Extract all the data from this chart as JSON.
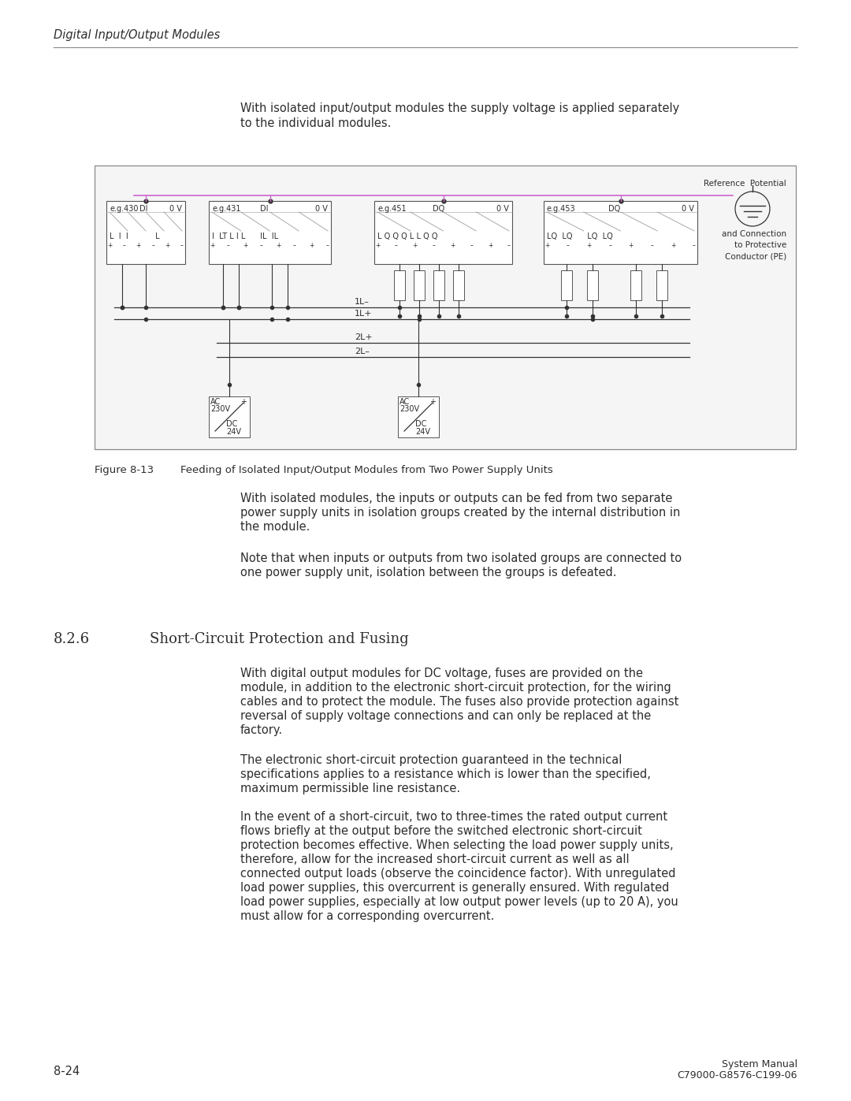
{
  "page_title": "Digital Input/Output Modules",
  "intro_line1": "With isolated input/output modules the supply voltage is applied separately",
  "intro_line2": "to the individual modules.",
  "figure_caption_label": "Figure 8-13",
  "figure_caption_text": "    Feeding of Isolated Input/Output Modules from Two Power Supply Units",
  "body_para1_line1": "With isolated modules, the inputs or outputs can be fed from two separate",
  "body_para1_line2": "power supply units in isolation groups created by the internal distribution in",
  "body_para1_line3": "the module.",
  "body_para2_line1": "Note that when inputs or outputs from two isolated groups are connected to",
  "body_para2_line2": "one power supply unit, isolation between the groups is defeated.",
  "section_number": "8.2.6",
  "section_title": "Short-Circuit Protection and Fusing",
  "para1_lines": [
    "With digital output modules for DC voltage, fuses are provided on the",
    "module, in addition to the electronic short-circuit protection, for the wiring",
    "cables and to protect the module. The fuses also provide protection against",
    "reversal of supply voltage connections and can only be replaced at the",
    "factory."
  ],
  "para2_lines": [
    "The electronic short-circuit protection guaranteed in the technical",
    "specifications applies to a resistance which is lower than the specified,",
    "maximum permissible line resistance."
  ],
  "para3_lines": [
    "In the event of a short-circuit, two to three-times the rated output current",
    "flows briefly at the output before the switched electronic short-circuit",
    "protection becomes effective. When selecting the load power supply units,",
    "therefore, allow for the increased short-circuit current as well as all",
    "connected output loads (observe the coincidence factor). With unregulated",
    "load power supplies, this overcurrent is generally ensured. With regulated",
    "load power supplies, especially at low output power levels (up to 20 A), you",
    "must allow for a corresponding overcurrent."
  ],
  "footer_left": "8-24",
  "footer_right1": "System Manual",
  "footer_right2": "C79000-G8576-C199-06",
  "ref_potential": "Reference  Potential",
  "and_connection": "and Connection\nto Protective\nConductor (PE)",
  "mod1_label": "e.g.430",
  "mod1_type": "DI",
  "mod1_volt": "0 V",
  "mod1_pins": "L  I  I           L",
  "mod2_label": "e.g.431",
  "mod2_type": "DI",
  "mod2_volt": "0 V",
  "mod2_pins": "I  LT L I L      IL  IL",
  "mod3_label": "e.g.451",
  "mod3_type": "DQ",
  "mod3_volt": "0 V",
  "mod3_pins": "L Q Q Q L L Q Q",
  "mod4_label": "e.g.453",
  "mod4_type": "DQ",
  "mod4_volt": "0 V",
  "mod4_pins": "LQ  LQ      LQ  LQ",
  "bus1_label": "1L–",
  "bus2_label": "1L+",
  "bus3_label": "2L+",
  "bus4_label": "2L–",
  "psu_ac": "AC",
  "psu_230": "230V",
  "psu_dc": "DC",
  "psu_24": "24V",
  "bg_color": "#ffffff",
  "text_color": "#2d2d2d",
  "fig_border_color": "#888888",
  "module_border_color": "#555555",
  "wire_color": "#333333",
  "bus_color": "#cc66cc"
}
